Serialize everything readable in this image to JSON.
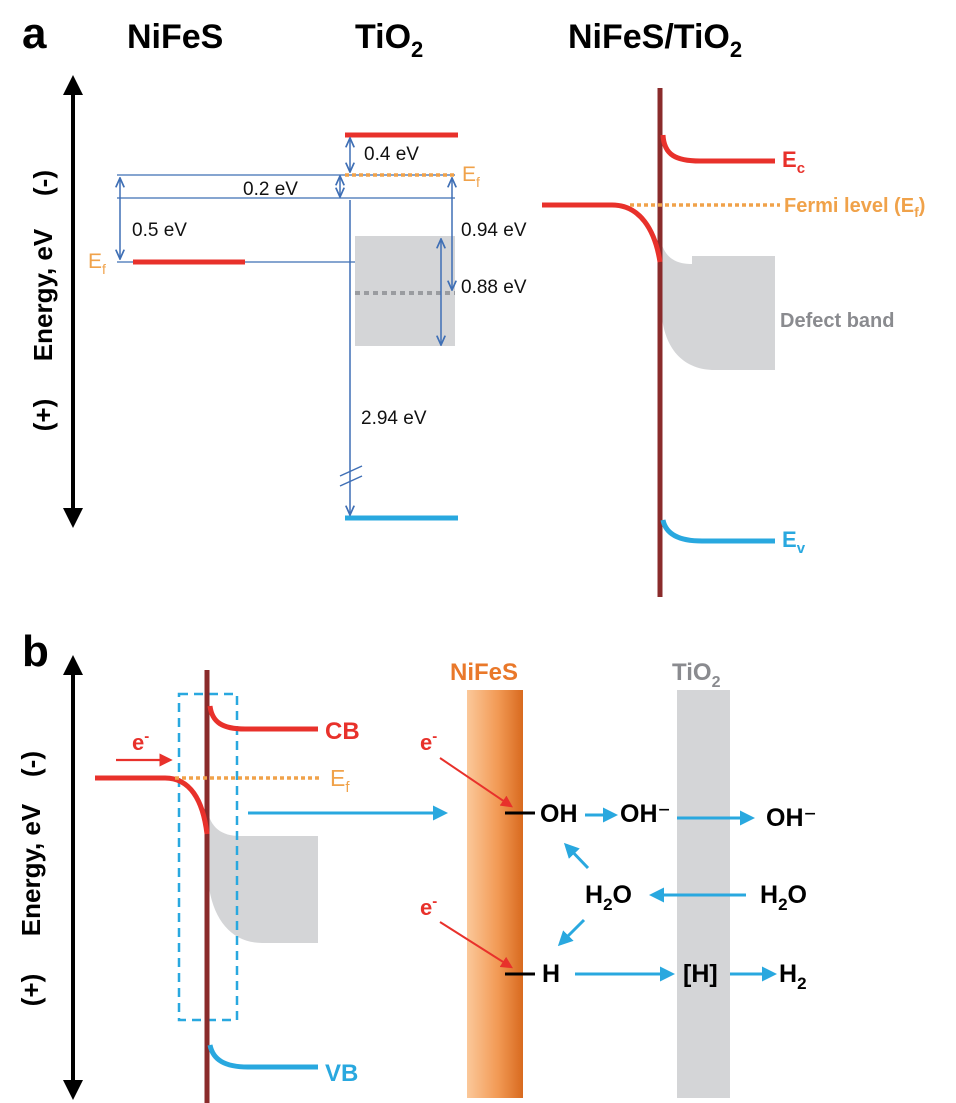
{
  "panel_a": {
    "label": "a",
    "titles": {
      "nifes": "NiFeS",
      "tio2_base": "TiO",
      "tio2_sub": "2",
      "composite_base": "NiFeS/TiO",
      "composite_sub": "2"
    },
    "axis": {
      "minus": "(-)",
      "energy": "Energy, eV",
      "plus": "(+)"
    },
    "nifes_ef": {
      "base": "E",
      "sub": "f"
    },
    "tio2_ef": {
      "base": "E",
      "sub": "f"
    },
    "gaps": {
      "v04": "0.4 eV",
      "v02": "0.2 eV",
      "v05": "0.5 eV",
      "v094": "0.94 eV",
      "v088": "0.88 eV",
      "v294": "2.94 eV"
    },
    "ec": {
      "base": "E",
      "sub": "c"
    },
    "ev": {
      "base": "E",
      "sub": "v"
    },
    "fermi": {
      "base": "Fermi level (E",
      "sub": "f",
      "tail": ")"
    },
    "defect_band": "Defect band"
  },
  "panel_b": {
    "label": "b",
    "axis": {
      "minus": "(-)",
      "energy": "Energy, eV",
      "plus": "(+)"
    },
    "cb": "CB",
    "vb": "VB",
    "ef": {
      "base": "E",
      "sub": "f"
    },
    "electron": {
      "base": "e",
      "sup": "-"
    },
    "nifes_label": "NiFeS",
    "tio2_label": {
      "base": "TiO",
      "sub": "2"
    },
    "species": {
      "oh": "OH",
      "oh_minus_1": "OH⁻",
      "oh_minus_2": "OH⁻",
      "h2o_1": {
        "base": "H",
        "sub": "2",
        "tail": "O"
      },
      "h2o_2": {
        "base": "H",
        "sub": "2",
        "tail": "O"
      },
      "h": "H",
      "h_bracket": "[H]",
      "h2": {
        "base": "H",
        "sub": "2"
      }
    }
  },
  "colors": {
    "red": "#e8312b",
    "blue": "#29a8df",
    "orange": "#f0a24a",
    "brown": "#8a2b2b",
    "gray": "#d4d5d7",
    "thin_blue": "#3f6fb5"
  }
}
